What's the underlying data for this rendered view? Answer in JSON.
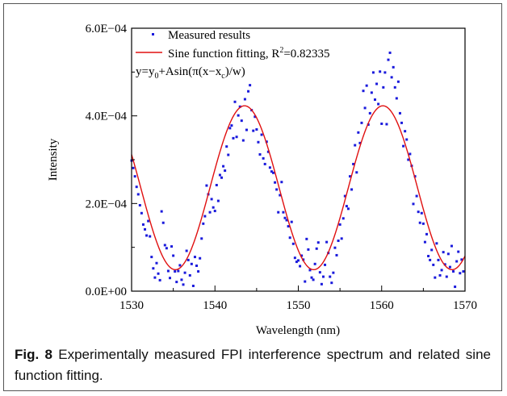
{
  "caption": {
    "label": "Fig. 8",
    "text": "Experimentally measured FPI interference spectrum and related sine function fitting."
  },
  "chart_data": {
    "type": "scatter",
    "title": "",
    "xlabel": "Wavelength (nm)",
    "ylabel": "Intensity",
    "xlim": [
      1530,
      1570
    ],
    "ylim": [
      0,
      0.0006
    ],
    "x_ticks": [
      1530,
      1540,
      1550,
      1560,
      1570
    ],
    "x_tick_labels": [
      "1530",
      "1540",
      "1550",
      "1560",
      "1570"
    ],
    "y_ticks": [
      0,
      0.0002,
      0.0004,
      0.0006
    ],
    "y_tick_labels": [
      "0.0E+00",
      "2.0E−04",
      "4.0E−04",
      "6.0E−04"
    ],
    "grid": false,
    "legend_position": "top-left",
    "colors": {
      "measured": "#1a1adc",
      "fit": "#e01010"
    },
    "series": [
      {
        "name": "Measured results",
        "kind": "scatter",
        "points": [
          [
            1530.0,
            0.000298
          ],
          [
            1530.2,
            0.000281
          ],
          [
            1530.4,
            0.000262
          ],
          [
            1530.6,
            0.000238
          ],
          [
            1530.8,
            0.000221
          ],
          [
            1531.0,
            0.000196
          ],
          [
            1531.2,
            0.000178
          ],
          [
            1531.4,
            0.000152
          ],
          [
            1531.6,
            0.000141
          ],
          [
            1531.8,
            0.000127
          ],
          [
            1532.0,
            0.00016
          ],
          [
            1532.2,
            0.000125
          ],
          [
            1532.4,
            7.8e-05
          ],
          [
            1532.6,
            5.2e-05
          ],
          [
            1532.8,
            3.1e-05
          ],
          [
            1533.0,
            6.4e-05
          ],
          [
            1533.2,
            4e-05
          ],
          [
            1533.4,
            2.5e-05
          ],
          [
            1533.6,
            0.000182
          ],
          [
            1533.8,
            0.000156
          ],
          [
            1534.0,
            0.000105
          ],
          [
            1534.2,
            9.8e-05
          ],
          [
            1534.4,
            4.6e-05
          ],
          [
            1534.6,
            3e-05
          ],
          [
            1534.8,
            0.000102
          ],
          [
            1535.0,
            8.1e-05
          ],
          [
            1535.2,
            4.5e-05
          ],
          [
            1535.4,
            2.1e-05
          ],
          [
            1535.6,
            4.6e-05
          ],
          [
            1535.8,
            5.9e-05
          ],
          [
            1536.0,
            2.6e-05
          ],
          [
            1536.2,
            1.5e-05
          ],
          [
            1536.4,
            4.2e-05
          ],
          [
            1536.6,
            9.2e-05
          ],
          [
            1536.8,
            7.1e-05
          ],
          [
            1537.0,
            3.6e-05
          ],
          [
            1537.2,
            6.2e-05
          ],
          [
            1537.4,
            1.2e-05
          ],
          [
            1537.6,
            7.8e-05
          ],
          [
            1537.8,
            5.8e-05
          ],
          [
            1538.0,
            4.5e-05
          ],
          [
            1538.2,
            7.5e-05
          ],
          [
            1538.4,
            0.00012
          ],
          [
            1538.6,
            0.000154
          ],
          [
            1538.8,
            0.000171
          ],
          [
            1539.0,
            0.000241
          ],
          [
            1539.2,
            0.000221
          ],
          [
            1539.4,
            0.00018
          ],
          [
            1539.6,
            0.00021
          ],
          [
            1539.8,
            0.000191
          ],
          [
            1540.0,
            0.000183
          ],
          [
            1540.2,
            0.000242
          ],
          [
            1540.4,
            0.000206
          ],
          [
            1540.6,
            0.000265
          ],
          [
            1540.8,
            0.000259
          ],
          [
            1541.0,
            0.000285
          ],
          [
            1541.2,
            0.000275
          ],
          [
            1541.4,
            0.00033
          ],
          [
            1541.6,
            0.000311
          ],
          [
            1541.8,
            0.000372
          ],
          [
            1542.0,
            0.000378
          ],
          [
            1542.2,
            0.000349
          ],
          [
            1542.4,
            0.000432
          ],
          [
            1542.6,
            0.000352
          ],
          [
            1542.8,
            0.000401
          ],
          [
            1543.0,
            0.000421
          ],
          [
            1543.2,
            0.000389
          ],
          [
            1543.4,
            0.000344
          ],
          [
            1543.6,
            0.000438
          ],
          [
            1543.8,
            0.000368
          ],
          [
            1544.0,
            0.000456
          ],
          [
            1544.2,
            0.00047
          ],
          [
            1544.4,
            0.000413
          ],
          [
            1544.6,
            0.000366
          ],
          [
            1544.8,
            0.000398
          ],
          [
            1545.0,
            0.000369
          ],
          [
            1545.2,
            0.00034
          ],
          [
            1545.4,
            0.000312
          ],
          [
            1545.6,
            0.000357
          ],
          [
            1545.8,
            0.000303
          ],
          [
            1546.0,
            0.00029
          ],
          [
            1546.2,
            0.000341
          ],
          [
            1546.4,
            0.000318
          ],
          [
            1546.6,
            0.000282
          ],
          [
            1546.8,
            0.000273
          ],
          [
            1547.0,
            0.00027
          ],
          [
            1547.2,
            0.000248
          ],
          [
            1547.4,
            0.000232
          ],
          [
            1547.6,
            0.00018
          ],
          [
            1547.8,
            0.000219
          ],
          [
            1548.0,
            0.000249
          ],
          [
            1548.2,
            0.00018
          ],
          [
            1548.4,
            0.000167
          ],
          [
            1548.6,
            0.000162
          ],
          [
            1548.8,
            0.000148
          ],
          [
            1549.0,
            0.000122
          ],
          [
            1549.2,
            0.000158
          ],
          [
            1549.4,
            0.000108
          ],
          [
            1549.6,
            7.6e-05
          ],
          [
            1549.8,
            6.7e-05
          ],
          [
            1550.0,
            7e-05
          ],
          [
            1550.2,
            5.7e-05
          ],
          [
            1550.4,
            8.1e-05
          ],
          [
            1550.6,
            7.2e-05
          ],
          [
            1550.8,
            2.2e-05
          ],
          [
            1551.0,
            0.000119
          ],
          [
            1551.2,
            9.5e-05
          ],
          [
            1551.4,
            4.8e-05
          ],
          [
            1551.6,
            3.1e-05
          ],
          [
            1551.8,
            2.6e-05
          ],
          [
            1552.0,
            6.2e-05
          ],
          [
            1552.2,
            9.7e-05
          ],
          [
            1552.4,
            0.000111
          ],
          [
            1552.6,
            4.3e-05
          ],
          [
            1552.8,
            1.6e-05
          ],
          [
            1553.0,
            3.3e-05
          ],
          [
            1553.2,
            6e-05
          ],
          [
            1553.4,
            0.000112
          ],
          [
            1553.6,
            8.7e-05
          ],
          [
            1553.8,
            3.3e-05
          ],
          [
            1554.0,
            1.9e-05
          ],
          [
            1554.2,
            4.2e-05
          ],
          [
            1554.4,
            9.9e-05
          ],
          [
            1554.6,
            8.2e-05
          ],
          [
            1554.8,
            0.000115
          ],
          [
            1555.0,
            0.000152
          ],
          [
            1555.2,
            0.00012
          ],
          [
            1555.4,
            0.000166
          ],
          [
            1555.6,
            0.000217
          ],
          [
            1555.8,
            0.000194
          ],
          [
            1556.0,
            0.000188
          ],
          [
            1556.2,
            0.000262
          ],
          [
            1556.4,
            0.000232
          ],
          [
            1556.6,
            0.00029
          ],
          [
            1556.8,
            0.000333
          ],
          [
            1557.0,
            0.000271
          ],
          [
            1557.2,
            0.000362
          ],
          [
            1557.4,
            0.000338
          ],
          [
            1557.6,
            0.000384
          ],
          [
            1557.8,
            0.000457
          ],
          [
            1558.0,
            0.000418
          ],
          [
            1558.2,
            0.000469
          ],
          [
            1558.4,
            0.00038
          ],
          [
            1558.6,
            0.000406
          ],
          [
            1558.8,
            0.000453
          ],
          [
            1559.0,
            0.000499
          ],
          [
            1559.2,
            0.000437
          ],
          [
            1559.4,
            0.000473
          ],
          [
            1559.6,
            0.000427
          ],
          [
            1559.8,
            0.000501
          ],
          [
            1560.0,
            0.000382
          ],
          [
            1560.2,
            0.000465
          ],
          [
            1560.4,
            0.000499
          ],
          [
            1560.6,
            0.000381
          ],
          [
            1560.8,
            0.000528
          ],
          [
            1561.0,
            0.000544
          ],
          [
            1561.2,
            0.000488
          ],
          [
            1561.4,
            0.000511
          ],
          [
            1561.6,
            0.000465
          ],
          [
            1561.8,
            0.00044
          ],
          [
            1562.0,
            0.000478
          ],
          [
            1562.2,
            0.000406
          ],
          [
            1562.4,
            0.000384
          ],
          [
            1562.6,
            0.000331
          ],
          [
            1562.8,
            0.000365
          ],
          [
            1563.0,
            0.000346
          ],
          [
            1563.2,
            0.0003
          ],
          [
            1563.4,
            0.000313
          ],
          [
            1563.6,
            0.000286
          ],
          [
            1563.8,
            0.000199
          ],
          [
            1564.0,
            0.000262
          ],
          [
            1564.2,
            0.000217
          ],
          [
            1564.4,
            0.000181
          ],
          [
            1564.6,
            0.000156
          ],
          [
            1564.8,
            0.000178
          ],
          [
            1565.0,
            0.000154
          ],
          [
            1565.2,
            0.000112
          ],
          [
            1565.4,
            0.00013
          ],
          [
            1565.6,
            8e-05
          ],
          [
            1565.8,
            7.1e-05
          ],
          [
            1566.0,
            9.4e-05
          ],
          [
            1566.2,
            6e-05
          ],
          [
            1566.4,
            3.1e-05
          ],
          [
            1566.6,
            0.000109
          ],
          [
            1566.8,
            7.1e-05
          ],
          [
            1567.0,
            3.6e-05
          ],
          [
            1567.2,
            4.8e-05
          ],
          [
            1567.4,
            8.9e-05
          ],
          [
            1567.6,
            6.1e-05
          ],
          [
            1567.8,
            3.3e-05
          ],
          [
            1568.0,
            8.5e-05
          ],
          [
            1568.2,
            5.5e-05
          ],
          [
            1568.4,
            0.000103
          ],
          [
            1568.6,
            4.5e-05
          ],
          [
            1568.8,
            1e-05
          ],
          [
            1569.0,
            6.8e-05
          ],
          [
            1569.2,
            9e-05
          ],
          [
            1569.4,
            4.1e-05
          ],
          [
            1569.6,
            7.2e-05
          ],
          [
            1569.8,
            4.5e-05
          ]
        ]
      },
      {
        "name": "Sine function fitting, R²=0.82335",
        "kind": "line",
        "params": {
          "y0": 0.000236,
          "A": 0.000187,
          "xc": 1539.4,
          "w": 8.3
        }
      }
    ],
    "annotation": "y=y0+Asin(π(x−xc)/w)"
  }
}
